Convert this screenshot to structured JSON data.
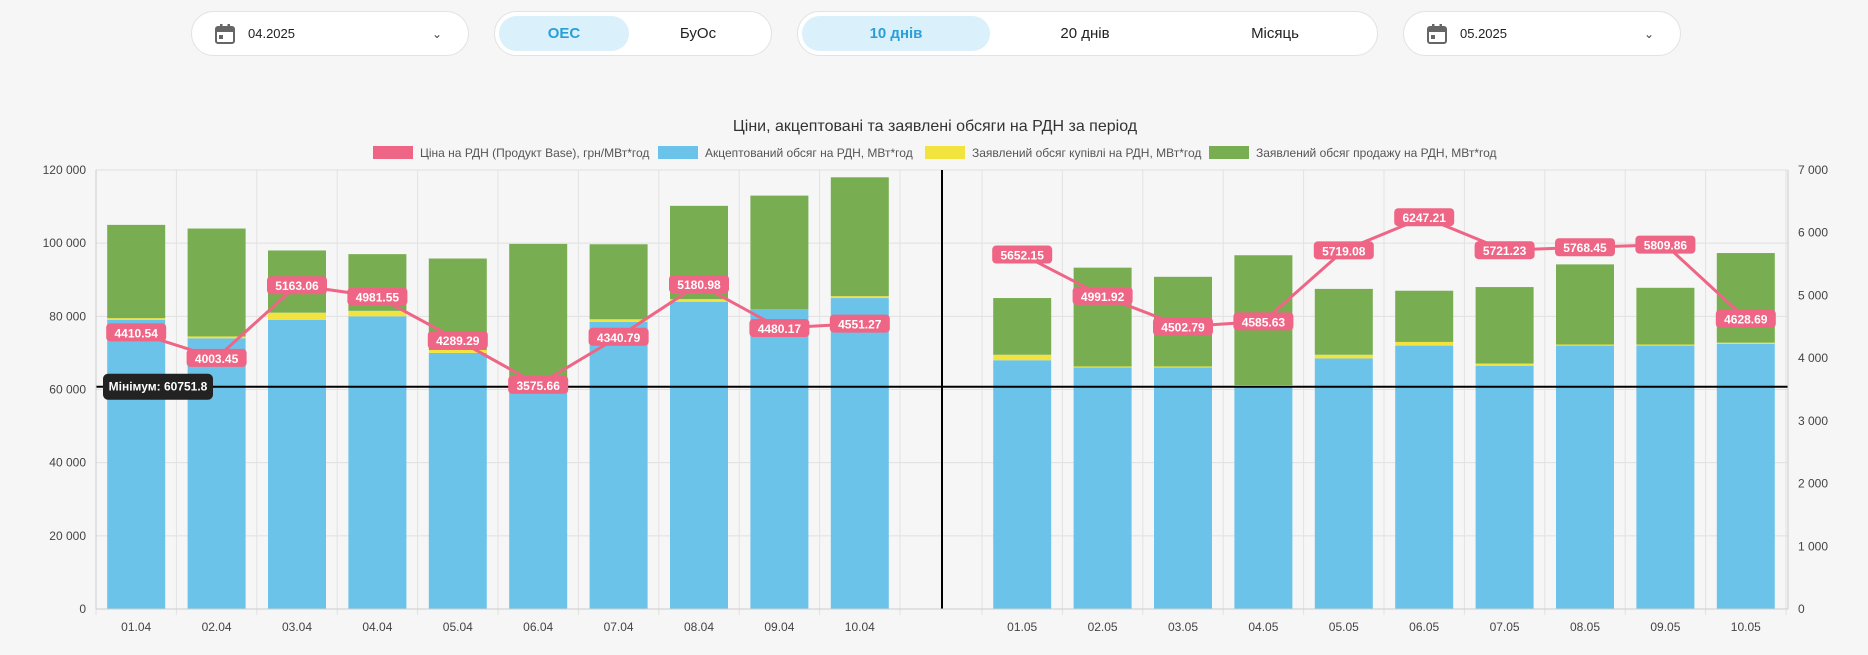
{
  "controls": {
    "date_left": "04.2025",
    "date_right": "05.2025",
    "system_options": [
      "ОЕС",
      "БуОс"
    ],
    "system_selected": "ОЕС",
    "period_options": [
      "10 днів",
      "20 днів",
      "Місяць"
    ],
    "period_selected": "10 днів"
  },
  "chart_data": {
    "type": "bar",
    "title": "Ціни, акцептовані та заявлені обсяги на РДН за період",
    "legend_position": "top",
    "grid": true,
    "categories_left": [
      "01.04",
      "02.04",
      "03.04",
      "04.04",
      "05.04",
      "06.04",
      "07.04",
      "08.04",
      "09.04",
      "10.04"
    ],
    "categories_right": [
      "01.05",
      "02.05",
      "03.05",
      "04.05",
      "05.05",
      "06.05",
      "07.05",
      "08.05",
      "09.05",
      "10.05"
    ],
    "y_left": {
      "min": 0,
      "max": 120000,
      "ticks": [
        "0",
        "20 000",
        "40 000",
        "60 000",
        "80 000",
        "100 000",
        "120 000"
      ]
    },
    "y_right": {
      "min": 0,
      "max": 7000,
      "ticks": [
        "0",
        "1 000",
        "2 000",
        "3 000",
        "4 000",
        "5 000",
        "6 000",
        "7 000"
      ]
    },
    "series": [
      {
        "name": "Ціна на РДН (Продукт Base), грн/МВт*год",
        "kind": "line",
        "axis": "right",
        "color": "#ef6585",
        "values_left": [
          4410.54,
          4003.45,
          5163.06,
          4981.55,
          4289.29,
          3575.66,
          4340.79,
          5180.98,
          4480.17,
          4551.27
        ],
        "values_right": [
          5652.15,
          4991.92,
          4502.79,
          4585.63,
          5719.08,
          6247.21,
          5721.23,
          5768.45,
          5809.86,
          4628.69
        ],
        "labels_left": [
          "4410.54",
          "4003.45",
          "5163.06",
          "4981.55",
          "4289.29",
          "3575.66",
          "4340.79",
          "5180.98",
          "4480.17",
          "4551.27"
        ],
        "labels_right": [
          "5652.15",
          "4991.92",
          "4502.79",
          "4585.63",
          "5719.08",
          "6247.21",
          "5721.23",
          "5768.45",
          "5809.86",
          "4628.69"
        ]
      },
      {
        "name": "Акцептований обсяг на РДН, МВт*год",
        "kind": "bar",
        "color": "#6bc3ea",
        "values_left": [
          79000,
          74000,
          79000,
          80000,
          70000,
          63000,
          78500,
          84000,
          82000,
          85000
        ],
        "values_right": [
          68000,
          66000,
          66000,
          61000,
          68500,
          72000,
          66500,
          72000,
          72000,
          72500
        ]
      },
      {
        "name": "Заявлений обсяг купівлі на РДН, МВт*год",
        "kind": "bar",
        "color": "#f3e33f",
        "values_left": [
          500,
          500,
          2000,
          1500,
          800,
          300,
          700,
          700,
          0,
          500
        ],
        "values_right": [
          1500,
          300,
          300,
          200,
          1000,
          1000,
          600,
          300,
          300,
          300
        ]
      },
      {
        "name": "Заявлений обсяг продажу на РДН, МВт*год",
        "kind": "bar",
        "color": "#78ae51",
        "values_left": [
          25500,
          29500,
          17000,
          15500,
          25000,
          36500,
          20500,
          25500,
          31000,
          32500
        ],
        "values_right": [
          15500,
          27000,
          24500,
          35500,
          18000,
          14000,
          20900,
          21900,
          15500,
          24500
        ]
      }
    ],
    "min_line": {
      "value": 60751.8,
      "label": "Мінімум: 60751.8"
    }
  }
}
